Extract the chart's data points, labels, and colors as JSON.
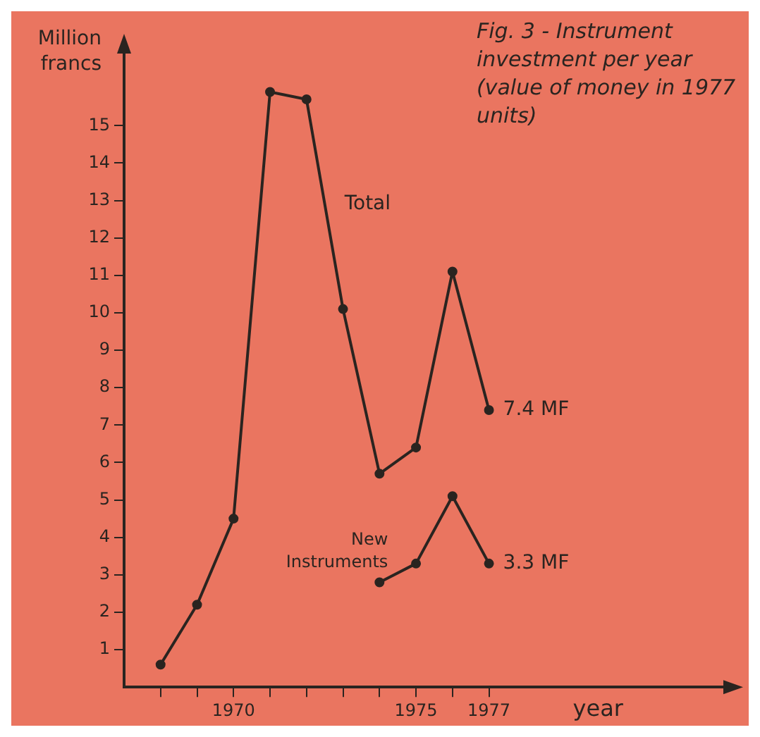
{
  "chart_data": {
    "type": "line",
    "title": "Fig. 3 - Instrument investment per year (value of money in 1977 units)",
    "xlabel": "year",
    "ylabel": "Million francs",
    "x": [
      1968,
      1969,
      1970,
      1971,
      1972,
      1973,
      1974,
      1975,
      1976,
      1977
    ],
    "series": [
      {
        "name": "Total",
        "color": "#2a2420",
        "values": [
          0.6,
          2.2,
          4.5,
          15.9,
          15.7,
          10.1,
          5.7,
          6.4,
          11.1,
          7.4
        ]
      },
      {
        "name": "New Instruments",
        "color": "#2a2420",
        "x": [
          1974,
          1975,
          1976,
          1977
        ],
        "values": [
          2.8,
          3.3,
          5.1,
          3.3
        ]
      }
    ],
    "annotations": [
      {
        "text": "7.4 MF",
        "x": 1977,
        "y": 7.4
      },
      {
        "text": "3.3 MF",
        "x": 1977,
        "y": 3.3
      }
    ],
    "xlim": [
      1967,
      1983.5
    ],
    "ylim": [
      0,
      17
    ],
    "xticks": [
      {
        "value": 1968,
        "label": null
      },
      {
        "value": 1969,
        "label": null
      },
      1970,
      {
        "value": 1971,
        "label": null
      },
      {
        "value": 1972,
        "label": null
      },
      {
        "value": 1973,
        "label": null
      },
      {
        "value": 1974,
        "label": null
      },
      1975,
      {
        "value": 1976,
        "label": null
      },
      1977
    ],
    "yticks": [
      1,
      2,
      3,
      4,
      5,
      6,
      7,
      8,
      9,
      10,
      11,
      12,
      13,
      14,
      15
    ],
    "grid": false,
    "legend": false,
    "marker": "circle",
    "line_style": "solid"
  }
}
